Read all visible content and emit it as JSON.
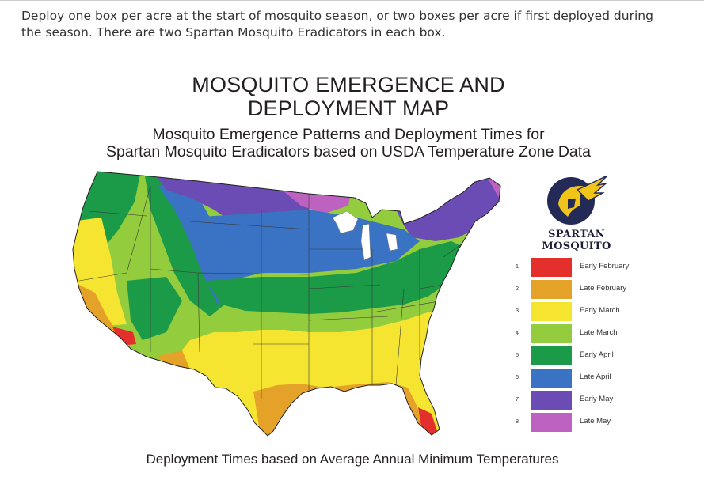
{
  "page": {
    "intro_text": "Deploy one box per acre at the start of mosquito season, or two boxes per acre if first deployed during the season. There are two Spartan Mosquito Eradicators in each box."
  },
  "map": {
    "title_line1": "MOSQUITO EMERGENCE AND",
    "title_line2": "DEPLOYMENT MAP",
    "subtitle_line1": "Mosquito Emergence Patterns and Deployment Times for",
    "subtitle_line2": "Spartan Mosquito Eradicators based on USDA Temperature Zone Data",
    "footer": "Deployment Times based on Average Annual Minimum Temperatures",
    "brand_name": "SPARTAN MOSQUITO",
    "logo_icon": "spartan-helmet-icon",
    "legend": [
      {
        "zone": "1",
        "label": "Early February",
        "color": "#e4302c"
      },
      {
        "zone": "2",
        "label": "Late February",
        "color": "#e5a228"
      },
      {
        "zone": "3",
        "label": "Early March",
        "color": "#f5e531"
      },
      {
        "zone": "4",
        "label": "Late March",
        "color": "#93cc3c"
      },
      {
        "zone": "5",
        "label": "Early April",
        "color": "#1b9a47"
      },
      {
        "zone": "6",
        "label": "Late April",
        "color": "#3b73c4"
      },
      {
        "zone": "7",
        "label": "Early May",
        "color": "#6b4bb4"
      },
      {
        "zone": "8",
        "label": "Late May",
        "color": "#bd62c1"
      }
    ]
  }
}
